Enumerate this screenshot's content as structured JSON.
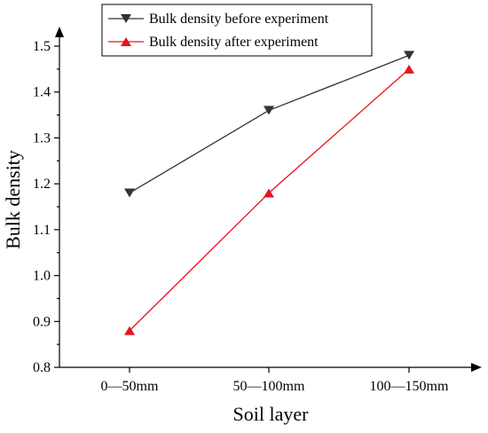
{
  "chart_data": {
    "type": "line",
    "categories": [
      "0—50mm",
      "50—100mm",
      "100—150mm"
    ],
    "series": [
      {
        "name": "Bulk density before experiment",
        "values": [
          1.18,
          1.36,
          1.48
        ],
        "color": "#333333",
        "marker": "triangle-down"
      },
      {
        "name": "Bulk density after experiment",
        "values": [
          0.88,
          1.18,
          1.45
        ],
        "color": "#e8141b",
        "marker": "triangle-up"
      }
    ],
    "xlabel": "Soil layer",
    "ylabel": "Bulk density",
    "ylim": [
      0.8,
      1.5
    ],
    "yticks": [
      "0.8",
      "0.9",
      "1.0",
      "1.1",
      "1.2",
      "1.3",
      "1.4",
      "1.5"
    ],
    "grid": false,
    "legend_position": "top-left"
  }
}
